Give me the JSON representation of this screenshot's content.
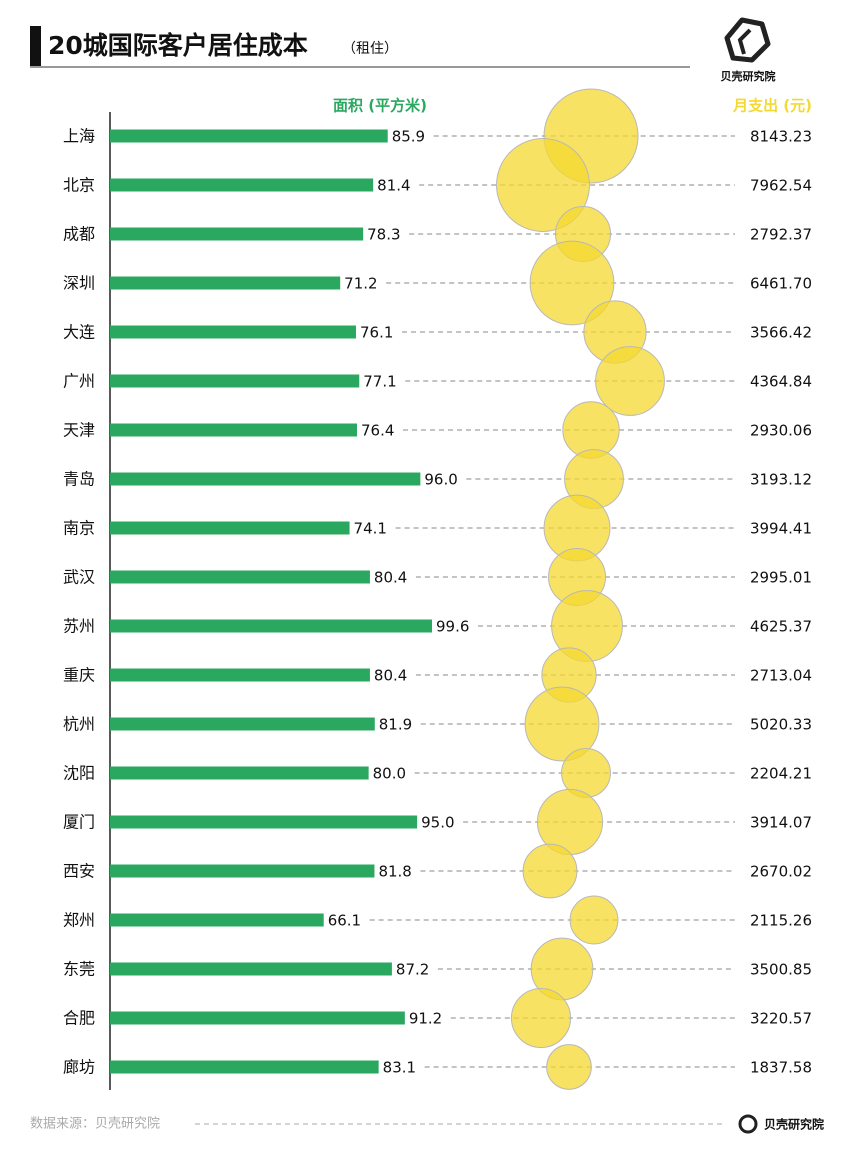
{
  "chart_data": {
    "type": "bar",
    "title": "20城国际客户居住成本",
    "subtitle": "（租住）",
    "categories": [
      "上海",
      "北京",
      "成都",
      "深圳",
      "大连",
      "广州",
      "天津",
      "青岛",
      "南京",
      "武汉",
      "苏州",
      "重庆",
      "杭州",
      "沈阳",
      "厦门",
      "西安",
      "郑州",
      "东莞",
      "合肥",
      "廊坊"
    ],
    "series": [
      {
        "name": "面积 (平方米)",
        "color": "#2aa860",
        "values": [
          85.9,
          81.4,
          78.3,
          71.2,
          76.1,
          77.1,
          76.4,
          96.0,
          74.1,
          80.4,
          99.6,
          80.4,
          81.9,
          80.0,
          95.0,
          81.8,
          66.1,
          87.2,
          91.2,
          83.1
        ],
        "value_labels": [
          "85.9",
          "81.4",
          "78.3",
          "71.2",
          "76.1",
          "77.1",
          "76.4",
          "96.0",
          "74.1",
          "80.4",
          "99.6",
          "80.4",
          "81.9",
          "80.0",
          "95.0",
          "81.8",
          "66.1",
          "87.2",
          "91.2",
          "83.1"
        ]
      },
      {
        "name": "月支出 (元)",
        "color": "#f5d830",
        "mark": "bubble",
        "values": [
          8143.23,
          7962.54,
          2792.37,
          6461.7,
          3566.42,
          4364.84,
          2930.06,
          3193.12,
          3994.41,
          2995.01,
          4625.37,
          2713.04,
          5020.33,
          2204.21,
          3914.07,
          2670.02,
          2115.26,
          3500.85,
          3220.57,
          1837.58
        ],
        "value_labels": [
          "8143.23",
          "7962.54",
          "2792.37",
          "6461.70",
          "3566.42",
          "4364.84",
          "2930.06",
          "3193.12",
          "3994.41",
          "2995.01",
          "4625.37",
          "2713.04",
          "5020.33",
          "2204.21",
          "3914.07",
          "2670.02",
          "2115.26",
          "3500.85",
          "3220.57",
          "1837.58"
        ]
      }
    ]
  },
  "source": "数据来源：贝壳研究院",
  "brand": "贝壳研究院"
}
